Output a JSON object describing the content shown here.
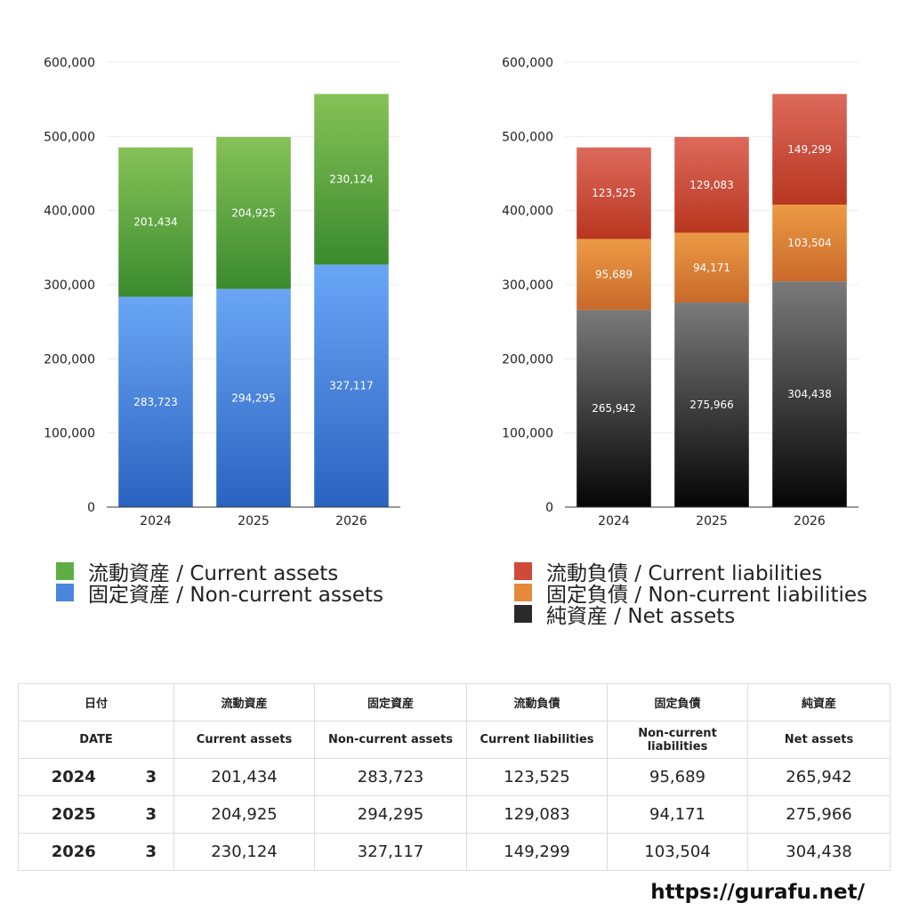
{
  "chart_data": [
    {
      "type": "bar",
      "stacked": true,
      "categories": [
        "2024",
        "2025",
        "2026"
      ],
      "ylim": [
        0,
        600000
      ],
      "yticks": [
        "0",
        "100,000",
        "200,000",
        "300,000",
        "400,000",
        "500,000",
        "600,000"
      ],
      "series": [
        {
          "name": "固定資産 / Non-current assets",
          "values": [
            283723,
            294295,
            327117
          ],
          "labels": [
            "283,723",
            "294,295",
            "327,117"
          ],
          "color_top": "#6aa6f5",
          "color_bottom": "#2a63c0"
        },
        {
          "name": "流動資産 / Current assets",
          "values": [
            201434,
            204925,
            230124
          ],
          "labels": [
            "201,434",
            "204,925",
            "230,124"
          ],
          "color_top": "#86c257",
          "color_bottom": "#3a8a2e"
        }
      ],
      "legend_position": "bottom",
      "grid": true
    },
    {
      "type": "bar",
      "stacked": true,
      "categories": [
        "2024",
        "2025",
        "2026"
      ],
      "ylim": [
        0,
        600000
      ],
      "yticks": [
        "0",
        "100,000",
        "200,000",
        "300,000",
        "400,000",
        "500,000",
        "600,000"
      ],
      "series": [
        {
          "name": "純資産 / Net assets",
          "values": [
            265942,
            275966,
            304438
          ],
          "labels": [
            "265,942",
            "275,966",
            "304,438"
          ],
          "color_top": "#7a7a7a",
          "color_bottom": "#050505"
        },
        {
          "name": "固定負債 / Non-current liabilities",
          "values": [
            95689,
            94171,
            103504
          ],
          "labels": [
            "95,689",
            "94,171",
            "103,504"
          ],
          "color_top": "#ec9a45",
          "color_bottom": "#c9692a"
        },
        {
          "name": "流動負債 / Current liabilities",
          "values": [
            123525,
            129083,
            149299
          ],
          "labels": [
            "123,525",
            "129,083",
            "149,299"
          ],
          "color_top": "#dd6a5c",
          "color_bottom": "#b8361f"
        }
      ],
      "legend_position": "bottom",
      "grid": true
    }
  ],
  "legend_left": [
    {
      "label": "流動資産 / Current assets",
      "color": "#5fae45"
    },
    {
      "label": "固定資産 / Non-current assets",
      "color": "#4a86dc"
    }
  ],
  "legend_right": [
    {
      "label": "流動負債 / Current liabilities",
      "color": "#cf4a38"
    },
    {
      "label": "固定負債 / Non-current liabilities",
      "color": "#e48a3a"
    },
    {
      "label": "純資産 / Net assets",
      "color": "#2a2a2a"
    }
  ],
  "table": {
    "headers_jp": [
      "日付",
      "流動資産",
      "固定資産",
      "流動負債",
      "固定負債",
      "純資産"
    ],
    "headers_en": [
      "DATE",
      "Current assets",
      "Non-current assets",
      "Current liabilities",
      "Non-current liabilities",
      "Net assets"
    ],
    "rows": [
      {
        "year": "2024",
        "month": "3",
        "values": [
          "201,434",
          "283,723",
          "123,525",
          "95,689",
          "265,942"
        ]
      },
      {
        "year": "2025",
        "month": "3",
        "values": [
          "204,925",
          "294,295",
          "129,083",
          "94,171",
          "275,966"
        ]
      },
      {
        "year": "2026",
        "month": "3",
        "values": [
          "230,124",
          "327,117",
          "149,299",
          "103,504",
          "304,438"
        ]
      }
    ]
  },
  "site_url": "https://gurafu.net/"
}
